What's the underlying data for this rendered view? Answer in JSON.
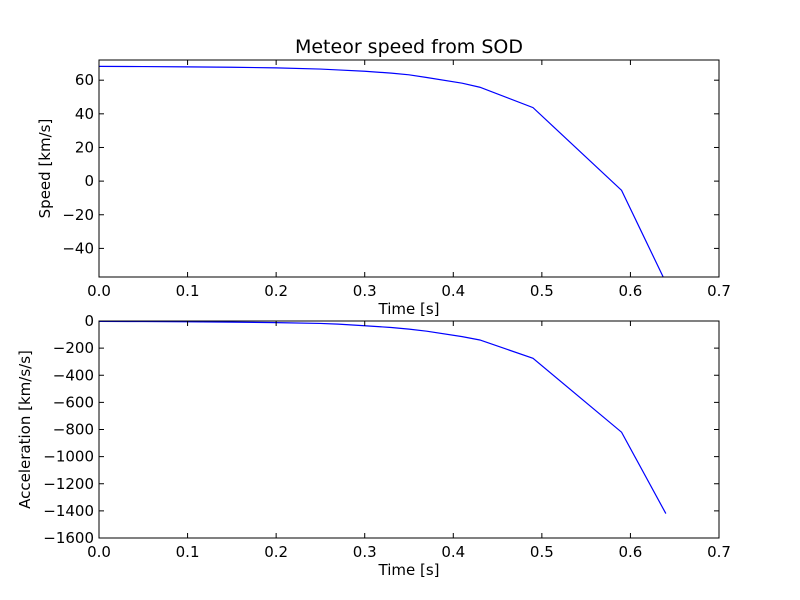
{
  "figure_title": "Meteor speed from  SOD",
  "line_color": "#0000ff",
  "chart_data": [
    {
      "type": "line",
      "title": "Meteor speed from  SOD",
      "xlabel": "Time [s]",
      "ylabel": "Speed [km/s]",
      "xlim": [
        0.0,
        0.7
      ],
      "ylim": [
        -57,
        72
      ],
      "xticks": [
        0.0,
        0.1,
        0.2,
        0.3,
        0.4,
        0.5,
        0.6,
        0.7
      ],
      "xtick_labels": [
        "0.0",
        "0.1",
        "0.2",
        "0.3",
        "0.4",
        "0.5",
        "0.6",
        "0.7"
      ],
      "yticks": [
        60,
        40,
        20,
        0,
        -20,
        -40
      ],
      "ytick_labels": [
        "60",
        "40",
        "20",
        "0",
        "−20",
        "−40"
      ],
      "grid": false,
      "series": [
        {
          "x": [
            0.0,
            0.05,
            0.1,
            0.15,
            0.2,
            0.25,
            0.27,
            0.3,
            0.33,
            0.35,
            0.37,
            0.41,
            0.43,
            0.49,
            0.59,
            0.637
          ],
          "y": [
            68.2,
            68.1,
            67.9,
            67.7,
            67.3,
            66.6,
            66.1,
            65.3,
            64.2,
            63.2,
            61.6,
            58.2,
            55.8,
            43.7,
            -5.5,
            -57
          ]
        }
      ]
    },
    {
      "type": "line",
      "title": "",
      "xlabel": "Time [s]",
      "ylabel": "Acceleration [km/s/s]",
      "xlim": [
        0.0,
        0.7
      ],
      "ylim": [
        -1600,
        0
      ],
      "xticks": [
        0.0,
        0.1,
        0.2,
        0.3,
        0.4,
        0.5,
        0.6,
        0.7
      ],
      "xtick_labels": [
        "0.0",
        "0.1",
        "0.2",
        "0.3",
        "0.4",
        "0.5",
        "0.6",
        "0.7"
      ],
      "yticks": [
        0,
        -200,
        -400,
        -600,
        -800,
        -1000,
        -1200,
        -1400,
        -1600
      ],
      "ytick_labels": [
        "0",
        "−200",
        "−400",
        "−600",
        "−800",
        "−1000",
        "−1200",
        "−1400",
        "−1600"
      ],
      "grid": false,
      "series": [
        {
          "x": [
            0.0,
            0.05,
            0.1,
            0.15,
            0.2,
            0.25,
            0.27,
            0.3,
            0.33,
            0.35,
            0.37,
            0.41,
            0.43,
            0.49,
            0.59,
            0.64
          ],
          "y": [
            -3,
            -4,
            -6,
            -8,
            -12,
            -18,
            -23,
            -35,
            -48,
            -60,
            -75,
            -115,
            -140,
            -275,
            -820,
            -1420
          ]
        }
      ]
    }
  ]
}
